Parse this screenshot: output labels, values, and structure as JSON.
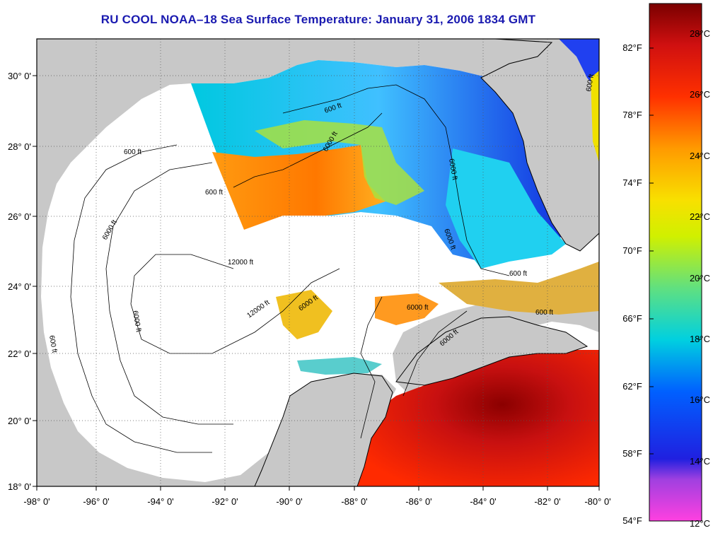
{
  "title": "RU COOL  NOAA–18  Sea Surface Temperature:  January 31, 2006 1834 GMT",
  "map": {
    "lon_labels": [
      "-98° 0'",
      "-96° 0'",
      "-94° 0'",
      "-92° 0'",
      "-90° 0'",
      "-88° 0'",
      "-86° 0'",
      "-84° 0'",
      "-82° 0'",
      "-80° 0'"
    ],
    "lat_labels": [
      "30° 0'",
      "28° 0'",
      "26° 0'",
      "24° 0'",
      "22° 0'",
      "20° 0'",
      "18° 0'"
    ],
    "contour_labels": [
      "600 ft",
      "6000 ft",
      "12000 ft",
      "600 ft",
      "6000 ft",
      "12000 ft",
      "6000 ft",
      "600 ft",
      "6000 ft",
      "600 ft",
      "6000 ft",
      "600 ft",
      "6000 ft",
      "6000 ft",
      "600 ft",
      "6000 ft",
      "600 ft"
    ],
    "land_color": "#c8c8c8",
    "nodata_color": "#ffffff"
  },
  "colorbar": {
    "celsius_labels": [
      "28°C",
      "26°C",
      "24°C",
      "22°C",
      "20°C",
      "18°C",
      "16°C",
      "14°C",
      "12°C"
    ],
    "fahrenheit_labels": [
      "82°F",
      "78°F",
      "74°F",
      "70°F",
      "66°F",
      "62°F",
      "58°F",
      "54°F"
    ],
    "colors": [
      "#8b0000",
      "#cc1010",
      "#ff2a00",
      "#ff7a00",
      "#ffb000",
      "#f0e000",
      "#a8e000",
      "#40e090",
      "#00d8d8",
      "#0090ff",
      "#0030e0",
      "#5020c0",
      "#ff40e0"
    ]
  }
}
